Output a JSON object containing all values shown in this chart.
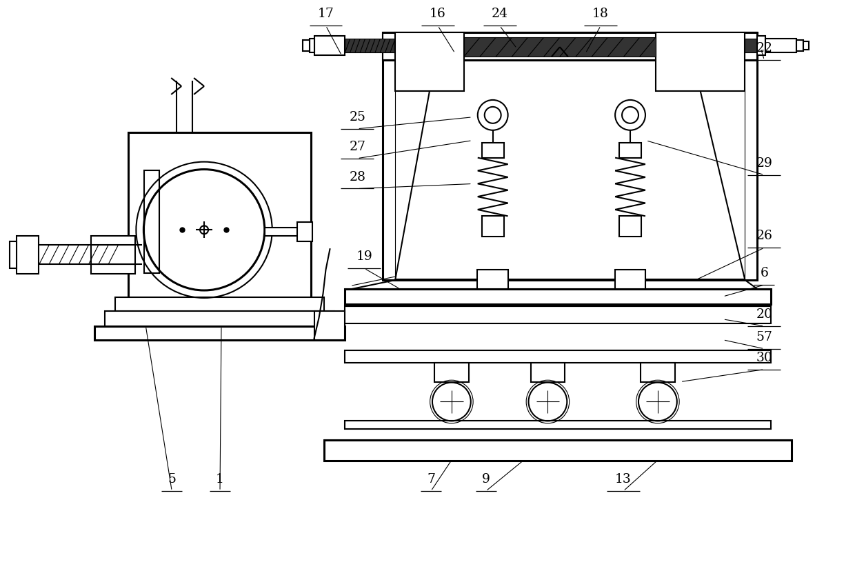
{
  "bg_color": "#ffffff",
  "line_color": "#000000",
  "lw": 1.5,
  "lw2": 0.8,
  "lw3": 2.2,
  "fig_w": 12.4,
  "fig_h": 8.41,
  "dpi": 100
}
